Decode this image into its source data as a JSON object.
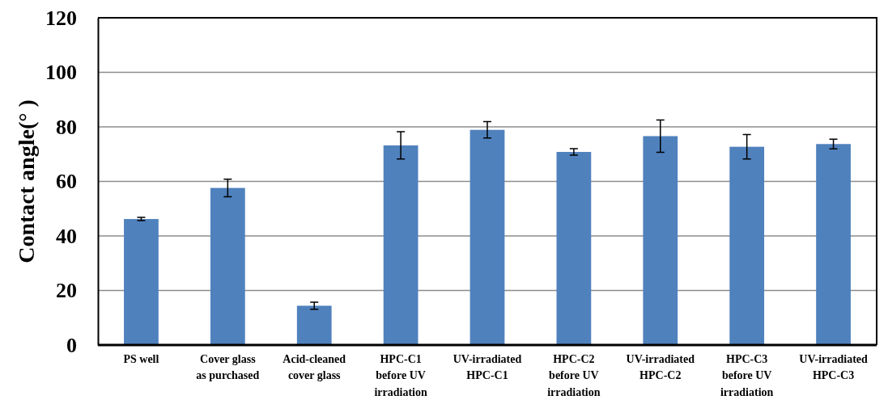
{
  "chart_data": {
    "type": "bar",
    "ylabel": "Contact angle(° )",
    "categories": [
      "PS well",
      "Cover glass as  purchased",
      "Acid-cleaned cover glass",
      "HPC-C1 before UV irradiation",
      "UV-irradiated HPC-C1",
      "HPC-C2 before UV irradiation",
      "UV-irradiated HPC-C2",
      "HPC-C3 before UV irradiation",
      "UV-irradiated HPC-C3"
    ],
    "values": [
      46.2,
      57.6,
      14.4,
      73.2,
      78.9,
      70.8,
      76.6,
      72.7,
      73.7
    ],
    "errors": [
      0.6,
      3.2,
      1.3,
      5.0,
      3.0,
      1.2,
      5.9,
      4.5,
      1.8
    ],
    "color": "#4f81bd",
    "ylim": [
      0,
      120
    ],
    "yticks": [
      0,
      20,
      40,
      60,
      80,
      100,
      120
    ],
    "grid": "y"
  }
}
